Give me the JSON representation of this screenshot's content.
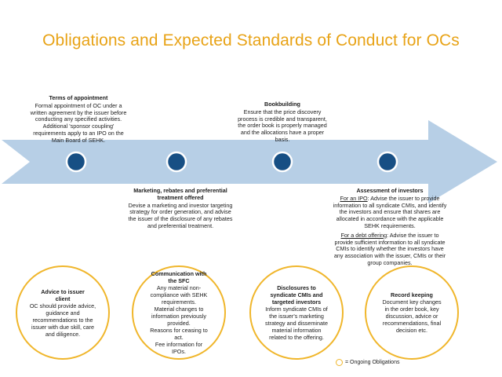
{
  "title": "Obligations and Expected Standards of Conduct for OCs",
  "stages": [
    {
      "heading": "Terms of appointment",
      "text": "Formal appointment of OC under a written agreement by the issuer before conducting any specified activities. Additional 'sponsor coupling' requirements apply to an IPO on the Main Board of SEHK."
    },
    {
      "heading": "Marketing, rebates and preferential treatment offered",
      "text": "Devise a marketing and investor targeting strategy for order generation, and advise the issuer of the disclosure of any rebates and preferential treatment."
    },
    {
      "heading": "Bookbuilding",
      "text": "Ensure that the price discovery process is credible and transparent, the order book is properly managed and the allocations have a proper basis."
    },
    {
      "heading": "Assessment of investors",
      "ipo_label": "For an IPO",
      "ipo_text": ": Advise the issuer to provide information to all syndicate CMIs, and identify the investors and ensure that shares are allocated in accordance with the applicable SEHK requirements.",
      "debt_label": "For a debt offering",
      "debt_text": ": Advise the issuer to provide sufficient information to all syndicate CMIs to identify whether the investors have any association with the issuer, CMIs or their group companies."
    }
  ],
  "ongoing": [
    {
      "heading": "Advice to issuer client",
      "text": "OC should provide advice, guidance and recommendations to the issuer with due skill, care and diligence."
    },
    {
      "heading": "Communication with the SFC",
      "lines": [
        "Any material non-compliance with SEHK requirements.",
        "Material changes to information previously provided.",
        "Reasons for ceasing to act.",
        "Fee information for IPOs."
      ]
    },
    {
      "heading": "Disclosures to syndicate CMIs and targeted investors",
      "text": "Inform syndicate CMIs of the issuer's marketing strategy and disseminate material information related to the offering."
    },
    {
      "heading": "Record keeping",
      "text": "Document key changes in the order book, key discussion, advice or recommendations, final decision etc."
    }
  ],
  "legend": "= Ongoing Obligations",
  "colors": {
    "title": "#e8a317",
    "arrow": "#b7cfe6",
    "dot": "#174f84",
    "ring": "#f0b62b"
  }
}
